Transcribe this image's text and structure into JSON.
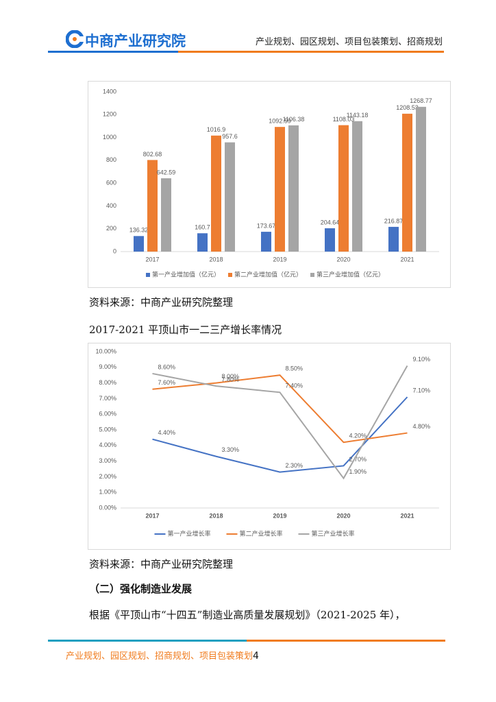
{
  "header": {
    "logo": "中商产业研究院",
    "tagline": "产业规划、园区规划、项目包装策划、招商规划"
  },
  "chart_data": [
    {
      "type": "bar",
      "categories": [
        "2017",
        "2018",
        "2019",
        "2020",
        "2021"
      ],
      "series": [
        {
          "name": "第一产业增加值（亿元）",
          "color": "#4472c4",
          "values": [
            136.32,
            160.7,
            173.67,
            204.64,
            216.87
          ]
        },
        {
          "name": "第二产业增加值（亿元）",
          "color": "#ed7d31",
          "values": [
            802.68,
            1016.9,
            1092.59,
            1108.03,
            1208.53
          ]
        },
        {
          "name": "第三产业增加值（亿元）",
          "color": "#a5a5a5",
          "values": [
            642.59,
            957.6,
            1106.38,
            1143.18,
            1268.77
          ]
        }
      ],
      "ylim": [
        0,
        1400
      ],
      "yticks": [
        0,
        200,
        400,
        600,
        800,
        1000,
        1200,
        1400
      ],
      "legend": "bottom"
    },
    {
      "type": "line",
      "categories": [
        "2017",
        "2018",
        "2019",
        "2020",
        "2021"
      ],
      "series": [
        {
          "name": "第一产业增长率",
          "color": "#4472c4",
          "values": [
            4.4,
            3.3,
            2.3,
            2.7,
            7.1
          ],
          "value_labels": [
            "4.40%",
            "3.30%",
            "2.30%",
            "2.70%",
            "7.10%"
          ]
        },
        {
          "name": "第二产业增长率",
          "color": "#ed7d31",
          "values": [
            7.6,
            8.0,
            8.5,
            4.2,
            4.8
          ],
          "value_labels": [
            "7.60%",
            "8.00%",
            "8.50%",
            "4.20%",
            "4.80%"
          ]
        },
        {
          "name": "第三产业增长率",
          "color": "#a5a5a5",
          "values": [
            8.6,
            7.8,
            7.4,
            1.9,
            9.1
          ],
          "value_labels": [
            "8.60%",
            "7.80%",
            "7.40%",
            "1.90%",
            "9.10%"
          ]
        }
      ],
      "ylim": [
        0,
        10
      ],
      "yticks": [
        {
          "value": 0,
          "label": "0.00%"
        },
        {
          "value": 1,
          "label": "1.00%"
        },
        {
          "value": 2,
          "label": "2.00%"
        },
        {
          "value": 3,
          "label": "3.00%"
        },
        {
          "value": 4,
          "label": "4.00%"
        },
        {
          "value": 5,
          "label": "5.00%"
        },
        {
          "value": 6,
          "label": "6.00%"
        },
        {
          "value": 7,
          "label": "7.00%"
        },
        {
          "value": 8,
          "label": "8.00%"
        },
        {
          "value": 9,
          "label": "9.00%"
        },
        {
          "value": 10,
          "label": "10.00%"
        }
      ],
      "legend": "bottom"
    }
  ],
  "document": {
    "source_1": "资料来源：中商产业研究院整理",
    "chart_2_title": "2017-2021 平顶山市一二三产增长率情况",
    "source_2": "资料来源：中商产业研究院整理",
    "heading": "（二）强化制造业发展",
    "paragraph": "根据《平顶山市“十四五”制造业高质量发展规划》（2021-2025 年），"
  },
  "footer": {
    "text": "产业规划、园区规划、招商规划、项目包装策划",
    "page": "4"
  }
}
